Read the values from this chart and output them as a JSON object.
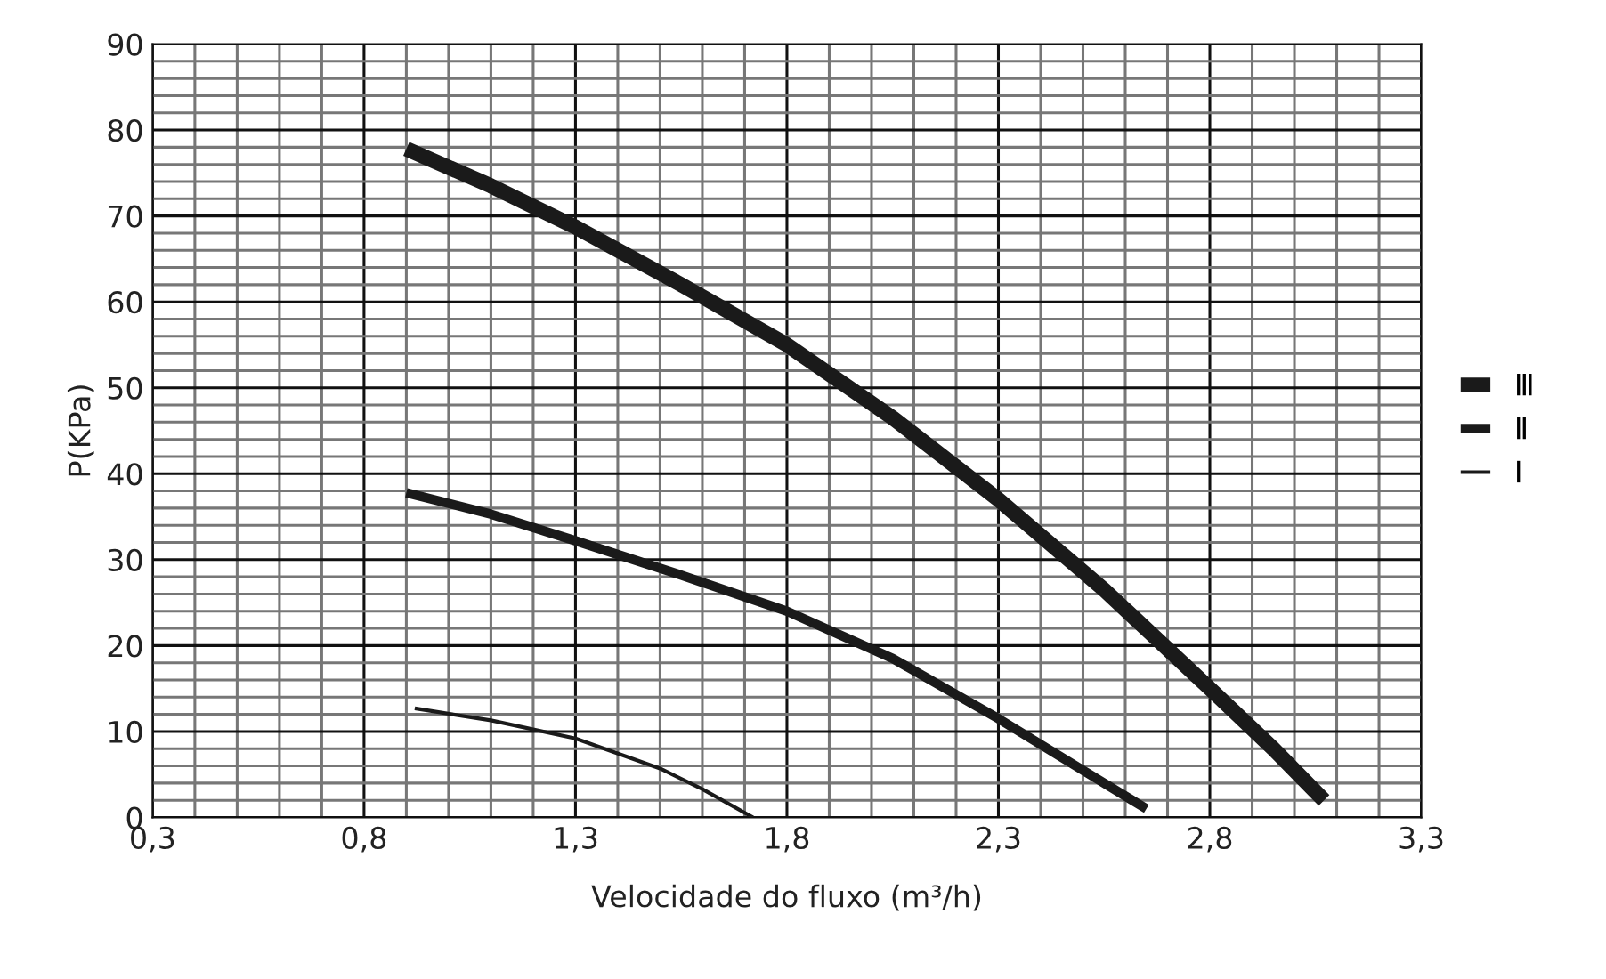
{
  "chart_data": {
    "type": "line",
    "xlabel": "Velocidade do fluxo (m³/h)",
    "ylabel": "P(KPa)",
    "xlim": [
      0.3,
      3.3
    ],
    "ylim": [
      0,
      90
    ],
    "xticks": [
      {
        "value": 0.3,
        "label": "0,3"
      },
      {
        "value": 0.4,
        "label": null
      },
      {
        "value": 0.5,
        "label": null
      },
      {
        "value": 0.6,
        "label": null
      },
      {
        "value": 0.7,
        "label": null
      },
      {
        "value": 0.8,
        "label": "0,8"
      },
      {
        "value": 0.9,
        "label": null
      },
      {
        "value": 1.0,
        "label": null
      },
      {
        "value": 1.1,
        "label": null
      },
      {
        "value": 1.2,
        "label": null
      },
      {
        "value": 1.3,
        "label": "1,3"
      },
      {
        "value": 1.4,
        "label": null
      },
      {
        "value": 1.5,
        "label": null
      },
      {
        "value": 1.6,
        "label": null
      },
      {
        "value": 1.7,
        "label": null
      },
      {
        "value": 1.8,
        "label": "1,8"
      },
      {
        "value": 1.9,
        "label": null
      },
      {
        "value": 2.0,
        "label": null
      },
      {
        "value": 2.1,
        "label": null
      },
      {
        "value": 2.2,
        "label": null
      },
      {
        "value": 2.3,
        "label": "2,3"
      },
      {
        "value": 2.4,
        "label": null
      },
      {
        "value": 2.5,
        "label": null
      },
      {
        "value": 2.6,
        "label": null
      },
      {
        "value": 2.7,
        "label": null
      },
      {
        "value": 2.8,
        "label": "2,8"
      },
      {
        "value": 2.9,
        "label": null
      },
      {
        "value": 3.0,
        "label": null
      },
      {
        "value": 3.1,
        "label": null
      },
      {
        "value": 3.2,
        "label": null
      },
      {
        "value": 3.3,
        "label": "3,3"
      }
    ],
    "yticks": [
      0,
      {
        "value": 2,
        "label": null
      },
      {
        "value": 4,
        "label": null
      },
      {
        "value": 6,
        "label": null
      },
      {
        "value": 8,
        "label": null
      },
      10,
      {
        "value": 12,
        "label": null
      },
      {
        "value": 14,
        "label": null
      },
      {
        "value": 16,
        "label": null
      },
      {
        "value": 18,
        "label": null
      },
      20,
      {
        "value": 22,
        "label": null
      },
      {
        "value": 24,
        "label": null
      },
      {
        "value": 26,
        "label": null
      },
      {
        "value": 28,
        "label": null
      },
      30,
      {
        "value": 32,
        "label": null
      },
      {
        "value": 34,
        "label": null
      },
      {
        "value": 36,
        "label": null
      },
      {
        "value": 38,
        "label": null
      },
      40,
      {
        "value": 42,
        "label": null
      },
      {
        "value": 44,
        "label": null
      },
      {
        "value": 46,
        "label": null
      },
      {
        "value": 48,
        "label": null
      },
      50,
      {
        "value": 52,
        "label": null
      },
      {
        "value": 54,
        "label": null
      },
      {
        "value": 56,
        "label": null
      },
      {
        "value": 58,
        "label": null
      },
      60,
      {
        "value": 62,
        "label": null
      },
      {
        "value": 64,
        "label": null
      },
      {
        "value": 66,
        "label": null
      },
      {
        "value": 68,
        "label": null
      },
      70,
      {
        "value": 72,
        "label": null
      },
      {
        "value": 74,
        "label": null
      },
      {
        "value": 76,
        "label": null
      },
      {
        "value": 78,
        "label": null
      },
      80,
      {
        "value": 82,
        "label": null
      },
      {
        "value": 84,
        "label": null
      },
      {
        "value": 86,
        "label": null
      },
      {
        "value": 88,
        "label": null
      },
      90
    ],
    "grid": true,
    "legend": "right",
    "marker": "none",
    "line_style": "solid",
    "series": [
      {
        "name": "Ⅲ",
        "color": "#1a1a1a",
        "x": [
          0.9,
          1.1,
          1.3,
          1.55,
          1.8,
          2.05,
          2.3,
          2.55,
          2.8,
          2.95,
          3.07
        ],
        "values": [
          77.8,
          73.5,
          68.7,
          62,
          55,
          46.5,
          37,
          26.5,
          15,
          8,
          2
        ]
      },
      {
        "name": "Ⅱ",
        "color": "#1a1a1a",
        "x": [
          0.9,
          1.1,
          1.3,
          1.55,
          1.8,
          2.05,
          2.3,
          2.5,
          2.65
        ],
        "values": [
          37.8,
          35.3,
          32.2,
          28.2,
          24,
          18.5,
          11.5,
          5.5,
          1
        ]
      },
      {
        "name": "Ⅰ",
        "color": "#1a1a1a",
        "x": [
          0.92,
          1.1,
          1.3,
          1.5,
          1.6,
          1.72
        ],
        "values": [
          12.7,
          11.3,
          9.2,
          5.7,
          3.3,
          0
        ]
      }
    ]
  }
}
